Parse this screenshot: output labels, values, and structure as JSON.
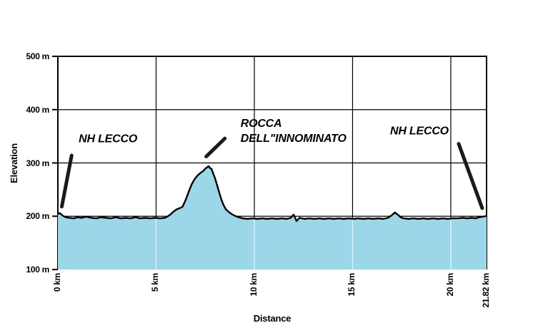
{
  "figure": {
    "background": "#ffffff"
  },
  "chart_data": {
    "type": "area",
    "title": "",
    "xlabel": "Distance",
    "ylabel": "Elevation",
    "x_unit": "km",
    "y_unit": "m",
    "xlim": [
      0,
      21.82
    ],
    "ylim": [
      100,
      500
    ],
    "grid": true,
    "legend": "none",
    "colors": {
      "line": "#000000",
      "fill": "#9BD7E9",
      "grid": "#000000",
      "grid_on_fill": "rgba(255,255,255,0.6)",
      "text": "#000000",
      "marker": "#1a1a1a"
    },
    "x_ticks": [
      {
        "v": 0,
        "label": "0 km"
      },
      {
        "v": 5,
        "label": "5 km"
      },
      {
        "v": 10,
        "label": "10 km"
      },
      {
        "v": 15,
        "label": "15 km"
      },
      {
        "v": 20,
        "label": "20 km"
      },
      {
        "v": 21.82,
        "label": "21.82 km"
      }
    ],
    "y_ticks": [
      {
        "v": 100,
        "label": "100 m"
      },
      {
        "v": 200,
        "label": "200 m"
      },
      {
        "v": 300,
        "label": "300 m"
      },
      {
        "v": 400,
        "label": "400 m"
      },
      {
        "v": 500,
        "label": "500 m"
      }
    ],
    "series": [
      {
        "name": "elevation-profile",
        "points": [
          [
            0,
            204
          ],
          [
            0.1,
            206
          ],
          [
            0.25,
            201
          ],
          [
            0.4,
            198
          ],
          [
            0.6,
            197
          ],
          [
            0.8,
            196
          ],
          [
            1.0,
            198
          ],
          [
            1.2,
            197
          ],
          [
            1.45,
            199
          ],
          [
            1.7,
            197
          ],
          [
            1.95,
            196
          ],
          [
            2.2,
            198
          ],
          [
            2.45,
            197
          ],
          [
            2.7,
            196
          ],
          [
            2.95,
            198
          ],
          [
            3.2,
            196
          ],
          [
            3.45,
            197
          ],
          [
            3.7,
            196
          ],
          [
            3.95,
            198
          ],
          [
            4.2,
            196
          ],
          [
            4.45,
            197
          ],
          [
            4.7,
            196
          ],
          [
            4.95,
            197
          ],
          [
            5.2,
            196
          ],
          [
            5.45,
            197
          ],
          [
            5.6,
            200
          ],
          [
            5.75,
            204
          ],
          [
            5.9,
            209
          ],
          [
            6.05,
            213
          ],
          [
            6.2,
            215
          ],
          [
            6.35,
            218
          ],
          [
            6.5,
            230
          ],
          [
            6.65,
            245
          ],
          [
            6.8,
            259
          ],
          [
            6.95,
            269
          ],
          [
            7.1,
            276
          ],
          [
            7.25,
            281
          ],
          [
            7.4,
            285
          ],
          [
            7.5,
            289
          ],
          [
            7.6,
            292
          ],
          [
            7.68,
            294
          ],
          [
            7.75,
            290
          ],
          [
            7.82,
            289
          ],
          [
            7.9,
            281
          ],
          [
            8.0,
            271
          ],
          [
            8.1,
            259
          ],
          [
            8.2,
            246
          ],
          [
            8.3,
            234
          ],
          [
            8.42,
            222
          ],
          [
            8.55,
            213
          ],
          [
            8.7,
            208
          ],
          [
            8.85,
            204
          ],
          [
            9.0,
            201
          ],
          [
            9.2,
            198
          ],
          [
            9.4,
            196
          ],
          [
            9.65,
            195
          ],
          [
            9.9,
            196
          ],
          [
            10.15,
            195
          ],
          [
            10.4,
            196
          ],
          [
            10.65,
            195
          ],
          [
            10.9,
            196
          ],
          [
            11.15,
            195
          ],
          [
            11.4,
            196
          ],
          [
            11.65,
            195
          ],
          [
            11.85,
            197
          ],
          [
            12.0,
            203
          ],
          [
            12.15,
            191
          ],
          [
            12.3,
            197
          ],
          [
            12.55,
            195
          ],
          [
            12.8,
            196
          ],
          [
            13.05,
            195
          ],
          [
            13.3,
            196
          ],
          [
            13.55,
            195
          ],
          [
            13.8,
            196
          ],
          [
            14.05,
            195
          ],
          [
            14.3,
            196
          ],
          [
            14.55,
            195
          ],
          [
            14.8,
            196
          ],
          [
            15.05,
            195
          ],
          [
            15.3,
            196
          ],
          [
            15.55,
            195
          ],
          [
            15.8,
            196
          ],
          [
            16.05,
            195
          ],
          [
            16.3,
            196
          ],
          [
            16.55,
            195
          ],
          [
            16.8,
            197
          ],
          [
            17.0,
            202
          ],
          [
            17.15,
            207
          ],
          [
            17.3,
            203
          ],
          [
            17.45,
            198
          ],
          [
            17.6,
            196
          ],
          [
            17.85,
            195
          ],
          [
            18.1,
            196
          ],
          [
            18.35,
            195
          ],
          [
            18.6,
            196
          ],
          [
            18.85,
            195
          ],
          [
            19.1,
            196
          ],
          [
            19.35,
            195
          ],
          [
            19.6,
            196
          ],
          [
            19.85,
            195
          ],
          [
            20.1,
            196
          ],
          [
            20.35,
            196
          ],
          [
            20.6,
            197
          ],
          [
            20.85,
            196
          ],
          [
            21.05,
            197
          ],
          [
            21.25,
            196
          ],
          [
            21.45,
            198
          ],
          [
            21.6,
            199
          ],
          [
            21.75,
            200
          ],
          [
            21.82,
            201
          ]
        ]
      }
    ],
    "annotations": [
      {
        "id": "nh-lecco-start",
        "lines": [
          "NH LECCO"
        ],
        "align": "center",
        "text_km": 2.55,
        "text_m": 345,
        "marker": {
          "from_km": 0.2,
          "from_m": 218,
          "to_km": 0.7,
          "to_m": 314
        }
      },
      {
        "id": "rocca-dell-innominato",
        "lines": [
          "ROCCA",
          "DELL\"INNOMINATO"
        ],
        "align": "left",
        "text_km": 9.3,
        "text_m": 360,
        "marker": {
          "from_km": 7.55,
          "from_m": 312,
          "to_km": 8.5,
          "to_m": 346
        }
      },
      {
        "id": "nh-lecco-end",
        "lines": [
          "NH LECCO"
        ],
        "align": "center",
        "text_km": 18.4,
        "text_m": 360,
        "marker": {
          "from_km": 20.4,
          "from_m": 336,
          "to_km": 21.6,
          "to_m": 215
        }
      }
    ]
  }
}
